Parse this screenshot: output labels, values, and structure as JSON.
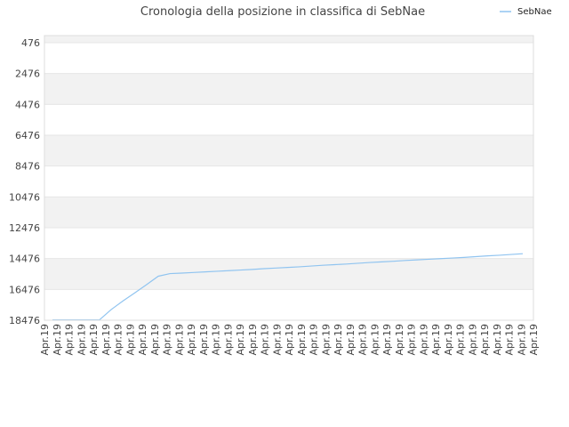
{
  "chart_data": {
    "type": "line",
    "title": "Cronologia della posizione in classifica di SebNae",
    "xlabel": "",
    "ylabel": "",
    "y_inverted": true,
    "ylim": [
      476,
      18476
    ],
    "y_ticks": [
      "476",
      "2476",
      "4476",
      "6476",
      "8476",
      "10476",
      "12476",
      "14476",
      "16476",
      "18476"
    ],
    "x_tick_label": "Apr.19",
    "legend": {
      "placement": "top-right",
      "entries": [
        "SebNae"
      ]
    },
    "grid": true,
    "colors": {
      "line": "#90c4f0",
      "band": "#f2f2f2",
      "grid": "#e6e6e6",
      "axis": "#dddddd"
    },
    "series": [
      {
        "name": "SebNae",
        "values": [
          18450,
          18450,
          18450,
          18450,
          18450,
          17780,
          17220,
          16700,
          16170,
          15620,
          15450,
          15420,
          15380,
          15340,
          15300,
          15260,
          15220,
          15180,
          15130,
          15090,
          15050,
          15010,
          14960,
          14910,
          14870,
          14830,
          14780,
          14730,
          14690,
          14650,
          14600,
          14560,
          14520,
          14480,
          14440,
          14400,
          14350,
          14300,
          14260,
          14210,
          14160
        ]
      }
    ]
  }
}
